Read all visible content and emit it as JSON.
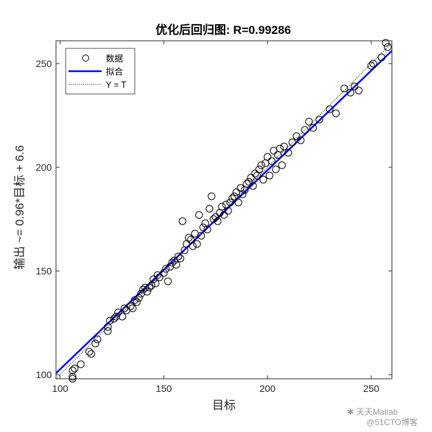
{
  "chart_data": {
    "type": "scatter",
    "title": "优化后回归图: R=0.99286",
    "xlabel": "目标",
    "ylabel": "输出 ~= 0.96*目标 + 6.6",
    "xlim": [
      98,
      260
    ],
    "ylim": [
      98,
      261
    ],
    "xticks": [
      100,
      150,
      200,
      250
    ],
    "yticks": [
      100,
      150,
      200,
      250
    ],
    "grid": false,
    "legend_position": "top-left",
    "legend": [
      "数据",
      "拟合",
      "Y = T"
    ],
    "fit": {
      "slope": 0.96,
      "intercept": 6.6
    },
    "series": [
      {
        "name": "数据",
        "points": [
          [
            106,
            98
          ],
          [
            106,
            99
          ],
          [
            106,
            102
          ],
          [
            107,
            103
          ],
          [
            110,
            105
          ],
          [
            114,
            111
          ],
          [
            115,
            110
          ],
          [
            117,
            115
          ],
          [
            118,
            117
          ],
          [
            123,
            121
          ],
          [
            123,
            123
          ],
          [
            124,
            126
          ],
          [
            126,
            127
          ],
          [
            127,
            128
          ],
          [
            128,
            130
          ],
          [
            130,
            128
          ],
          [
            131,
            132
          ],
          [
            132,
            131
          ],
          [
            134,
            133
          ],
          [
            135,
            132
          ],
          [
            136,
            136
          ],
          [
            137,
            135
          ],
          [
            138,
            137
          ],
          [
            139,
            139
          ],
          [
            140,
            141
          ],
          [
            141,
            142
          ],
          [
            142,
            140
          ],
          [
            143,
            142
          ],
          [
            144,
            143
          ],
          [
            145,
            146
          ],
          [
            146,
            144
          ],
          [
            147,
            148
          ],
          [
            148,
            147
          ],
          [
            150,
            149
          ],
          [
            152,
            145
          ],
          [
            151,
            151
          ],
          [
            153,
            152
          ],
          [
            154,
            154
          ],
          [
            155,
            155
          ],
          [
            156,
            153
          ],
          [
            157,
            157
          ],
          [
            158,
            156
          ],
          [
            159,
            174
          ],
          [
            160,
            160
          ],
          [
            161,
            163
          ],
          [
            162,
            166
          ],
          [
            163,
            165
          ],
          [
            164,
            162
          ],
          [
            165,
            168
          ],
          [
            166,
            163
          ],
          [
            167,
            177
          ],
          [
            168,
            167
          ],
          [
            169,
            171
          ],
          [
            170,
            173
          ],
          [
            171,
            170
          ],
          [
            172,
            180
          ],
          [
            173,
            186
          ],
          [
            174,
            175
          ],
          [
            175,
            176
          ],
          [
            176,
            174
          ],
          [
            177,
            178
          ],
          [
            178,
            181
          ],
          [
            179,
            177
          ],
          [
            180,
            182
          ],
          [
            181,
            179
          ],
          [
            182,
            183
          ],
          [
            183,
            185
          ],
          [
            184,
            186
          ],
          [
            185,
            188
          ],
          [
            186,
            183
          ],
          [
            187,
            190
          ],
          [
            188,
            187
          ],
          [
            189,
            189
          ],
          [
            190,
            192
          ],
          [
            191,
            193
          ],
          [
            192,
            195
          ],
          [
            193,
            191
          ],
          [
            194,
            197
          ],
          [
            195,
            196
          ],
          [
            196,
            199
          ],
          [
            197,
            201
          ],
          [
            198,
            194
          ],
          [
            199,
            202
          ],
          [
            200,
            205
          ],
          [
            201,
            196
          ],
          [
            202,
            203
          ],
          [
            203,
            208
          ],
          [
            204,
            199
          ],
          [
            205,
            206
          ],
          [
            206,
            209
          ],
          [
            207,
            201
          ],
          [
            208,
            210
          ],
          [
            210,
            207
          ],
          [
            212,
            212
          ],
          [
            214,
            215
          ],
          [
            216,
            213
          ],
          [
            218,
            218
          ],
          [
            220,
            222
          ],
          [
            222,
            219
          ],
          [
            225,
            223
          ],
          [
            230,
            228
          ],
          [
            233,
            226
          ],
          [
            237,
            238
          ],
          [
            240,
            236
          ],
          [
            242,
            239
          ],
          [
            244,
            237
          ],
          [
            250,
            249
          ],
          [
            251,
            250
          ],
          [
            255,
            253
          ],
          [
            257,
            260
          ],
          [
            258,
            258
          ]
        ]
      }
    ],
    "watermark": {
      "line1": "天天Matlab",
      "line2": "@51CTO博客"
    }
  }
}
